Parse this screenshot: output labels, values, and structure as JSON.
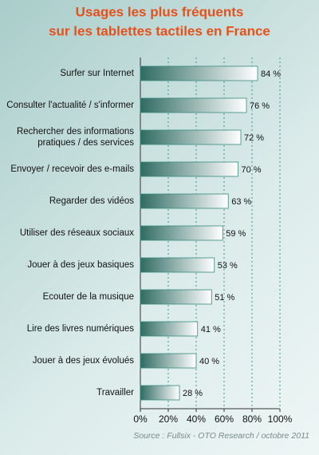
{
  "chart_data": {
    "type": "hbar",
    "title": [
      "Usages les plus fréquents",
      "sur les tablettes tactiles en France"
    ],
    "categories": [
      "Surfer sur Internet",
      "Consulter l'actualité / s'informer",
      "Rechercher des informations pratiques / des services",
      "Envoyer / recevoir des e-mails",
      "Regarder des vidéos",
      "Utiliser des réseaux sociaux",
      "Jouer à des jeux basiques",
      "Ecouter de la musique",
      "Lire des livres numériques",
      "Jouer à des jeux évolués",
      "Travailler"
    ],
    "values": [
      84,
      76,
      72,
      70,
      63,
      59,
      53,
      51,
      41,
      40,
      28
    ],
    "value_labels": [
      "84 %",
      "76 %",
      "72 %",
      "70 %",
      "63 %",
      "59 %",
      "53 %",
      "51 %",
      "41 %",
      "40 %",
      "28 %"
    ],
    "color": "#2f6b62",
    "xlim": [
      0,
      100
    ],
    "xticks": [
      {
        "value": 0,
        "label": "0%"
      },
      {
        "value": 20,
        "label": "20%"
      },
      {
        "value": 40,
        "label": "40%"
      },
      {
        "value": 60,
        "label": "60%"
      },
      {
        "value": 80,
        "label": "80%"
      },
      {
        "value": 100,
        "label": "100%"
      }
    ],
    "grid": true,
    "source": "Source : Fullsix - OTO Research / octobre 2011"
  }
}
